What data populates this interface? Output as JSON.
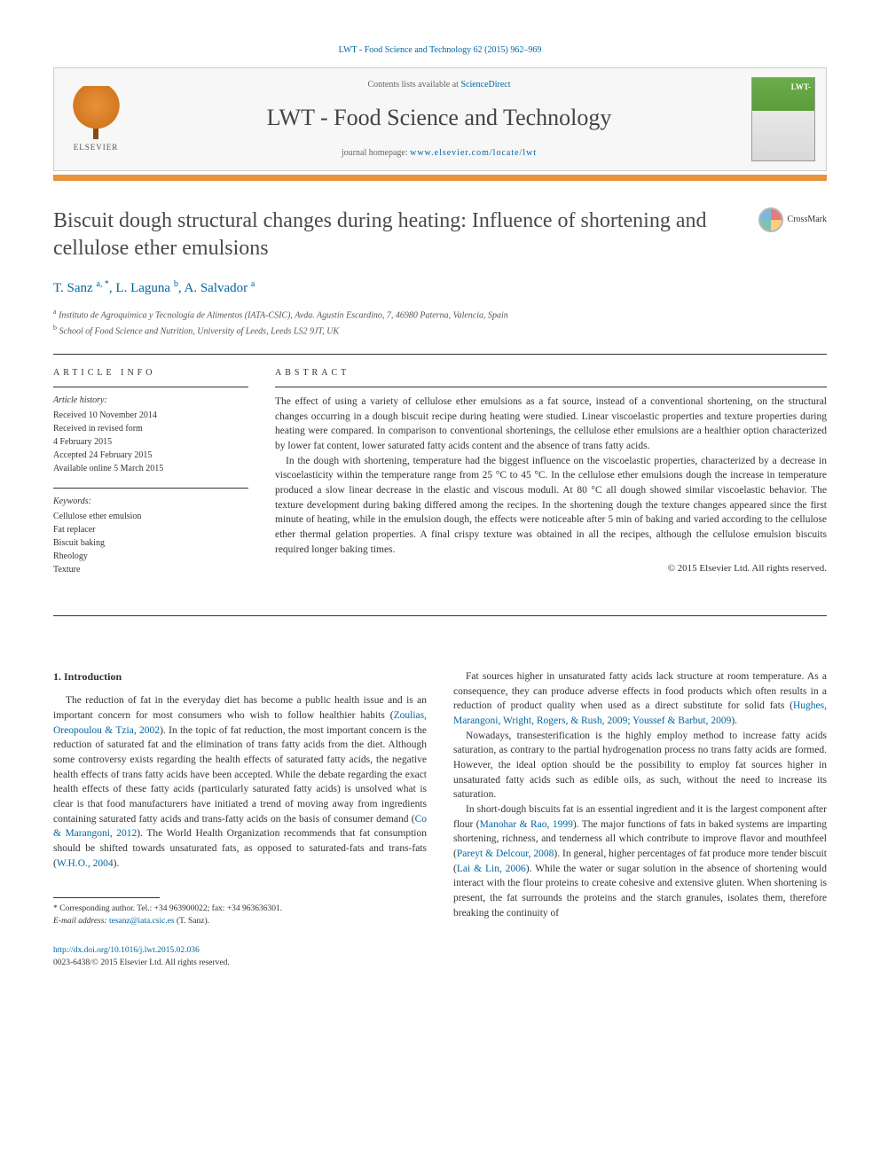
{
  "citation": "LWT - Food Science and Technology 62 (2015) 962–969",
  "header": {
    "publisher": "ELSEVIER",
    "contents_prefix": "Contents lists available at ",
    "contents_link": "ScienceDirect",
    "journal_name": "LWT - Food Science and Technology",
    "homepage_prefix": "journal homepage: ",
    "homepage_url": "www.elsevier.com/locate/lwt"
  },
  "article": {
    "title": "Biscuit dough structural changes during heating: Influence of shortening and cellulose ether emulsions",
    "crossmark": "CrossMark",
    "authors_html": "T. Sanz <sup>a, *</sup>, L. Laguna <sup>b</sup>, A. Salvador <sup>a</sup>",
    "affiliations": [
      {
        "sup": "a",
        "text": "Instituto de Agroquímica y Tecnología de Alimentos (IATA-CSIC), Avda. Agustín Escardino, 7, 46980 Paterna, Valencia, Spain"
      },
      {
        "sup": "b",
        "text": "School of Food Science and Nutrition, University of Leeds, Leeds LS2 9JT, UK"
      }
    ]
  },
  "info": {
    "heading": "ARTICLE INFO",
    "history_label": "Article history:",
    "history": "Received 10 November 2014\nReceived in revised form\n4 February 2015\nAccepted 24 February 2015\nAvailable online 5 March 2015",
    "keywords_label": "Keywords:",
    "keywords": "Cellulose ether emulsion\nFat replacer\nBiscuit baking\nRheology\nTexture"
  },
  "abstract": {
    "heading": "ABSTRACT",
    "p1": "The effect of using a variety of cellulose ether emulsions as a fat source, instead of a conventional shortening, on the structural changes occurring in a dough biscuit recipe during heating were studied. Linear viscoelastic properties and texture properties during heating were compared. In comparison to conventional shortenings, the cellulose ether emulsions are a healthier option characterized by lower fat content, lower saturated fatty acids content and the absence of trans fatty acids.",
    "p2": "In the dough with shortening, temperature had the biggest influence on the viscoelastic properties, characterized by a decrease in viscoelasticity within the temperature range from 25 °C to 45 °C. In the cellulose ether emulsions dough the increase in temperature produced a slow linear decrease in the elastic and viscous moduli. At 80 °C all dough showed similar viscoelastic behavior. The texture development during baking differed among the recipes. In the shortening dough the texture changes appeared since the first minute of heating, while in the emulsion dough, the effects were noticeable after 5 min of baking and varied according to the cellulose ether thermal gelation properties. A final crispy texture was obtained in all the recipes, although the cellulose emulsion biscuits required longer baking times.",
    "copyright": "© 2015 Elsevier Ltd. All rights reserved."
  },
  "body": {
    "intro_heading": "1. Introduction",
    "col1_p1a": "The reduction of fat in the everyday diet has become a public health issue and is an important concern for most consumers who wish to follow healthier habits (",
    "col1_p1_ref1": "Zoulias, Oreopoulou & Tzia, 2002",
    "col1_p1b": "). In the topic of fat reduction, the most important concern is the reduction of saturated fat and the elimination of trans fatty acids from the diet. Although some controversy exists regarding the health effects of saturated fatty acids, the negative health effects of trans fatty acids have been accepted. While the debate regarding the exact health effects of these fatty acids (particularly saturated fatty acids) is unsolved what is clear is that food manufacturers have initiated a trend of moving away from ingredients containing saturated fatty acids and trans-fatty acids on the basis of consumer demand (",
    "col1_p1_ref2": "Co & Marangoni, 2012",
    "col1_p1c": "). The World Health Organization recommends that fat consumption should be shifted towards unsaturated fats, as opposed to saturated-fats and trans-fats (",
    "col1_p1_ref3": "W.H.O., 2004",
    "col1_p1d": ").",
    "col2_p1a": "Fat sources higher in unsaturated fatty acids lack structure at room temperature. As a consequence, they can produce adverse effects in food products which often results in a reduction of product quality when used as a direct substitute for solid fats (",
    "col2_p1_ref1": "Hughes, Marangoni, Wright, Rogers, & Rush, 2009; Youssef & Barbut, 2009",
    "col2_p1b": ").",
    "col2_p2": "Nowadays, transesterification is the highly employ method to increase fatty acids saturation, as contrary to the partial hydrogenation process no trans fatty acids are formed. However, the ideal option should be the possibility to employ fat sources higher in unsaturated fatty acids such as edible oils, as such, without the need to increase its saturation.",
    "col2_p3a": "In short-dough biscuits fat is an essential ingredient and it is the largest component after flour (",
    "col2_p3_ref1": "Manohar & Rao, 1999",
    "col2_p3b": "). The major functions of fats in baked systems are imparting shortening, richness, and tenderness all which contribute to improve flavor and mouthfeel (",
    "col2_p3_ref2": "Pareyt & Delcour, 2008",
    "col2_p3c": "). In general, higher percentages of fat produce more tender biscuit (",
    "col2_p3_ref3": "Lai & Lin, 2006",
    "col2_p3d": "). While the water or sugar solution in the absence of shortening would interact with the flour proteins to create cohesive and extensive gluten. When shortening is present, the fat surrounds the proteins and the starch granules, isolates them, therefore breaking the continuity of"
  },
  "footnote": {
    "corr": "* Corresponding author. Tel.: +34 963900022; fax: +34 963636301.",
    "email_label": "E-mail address: ",
    "email": "tesanz@iata.csic.es",
    "email_suffix": " (T. Sanz)."
  },
  "footer": {
    "doi": "http://dx.doi.org/10.1016/j.lwt.2015.02.036",
    "issn": "0023-6438/© 2015 Elsevier Ltd. All rights reserved."
  }
}
